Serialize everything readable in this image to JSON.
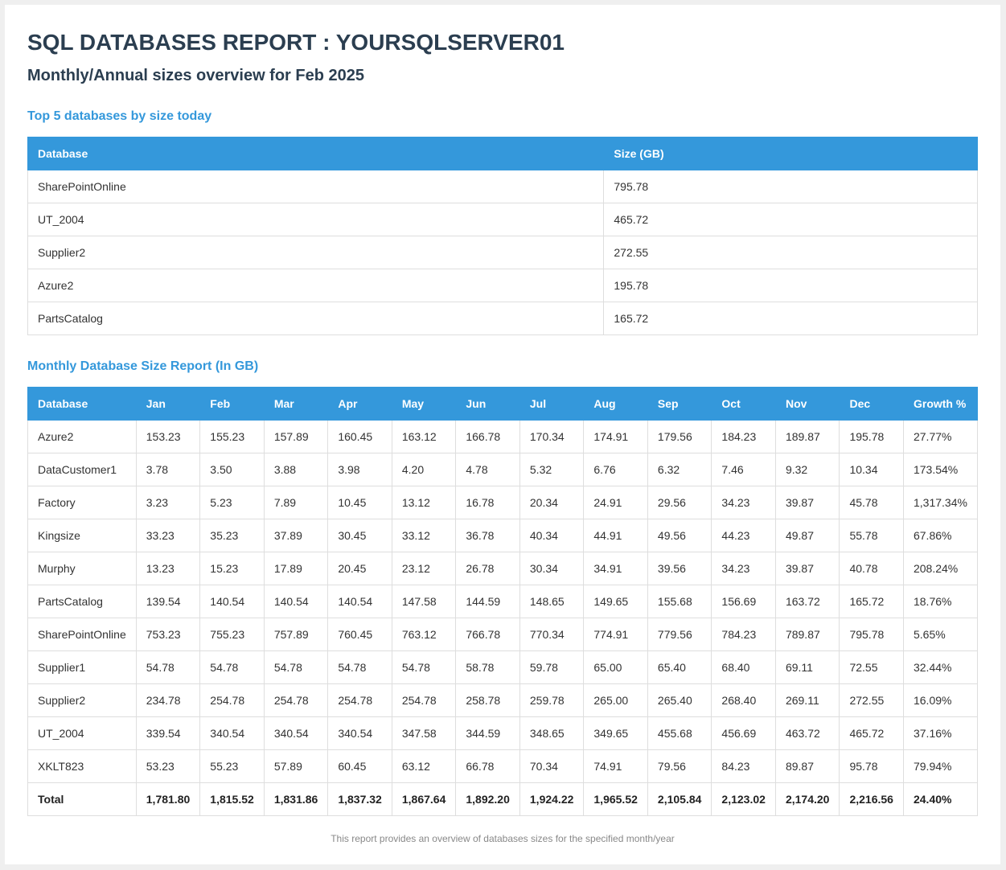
{
  "report": {
    "title": "SQL DATABASES REPORT : YOURSQLSERVER01",
    "subtitle": "Monthly/Annual sizes overview for Feb 2025",
    "footer": "This report provides an overview of databases sizes for the specified month/year"
  },
  "top5": {
    "title": "Top 5 databases by size today",
    "headers": [
      "Database",
      "Size (GB)"
    ],
    "rows": [
      [
        "SharePointOnline",
        "795.78"
      ],
      [
        "UT_2004",
        "465.72"
      ],
      [
        "Supplier2",
        "272.55"
      ],
      [
        "Azure2",
        "195.78"
      ],
      [
        "PartsCatalog",
        "165.72"
      ]
    ]
  },
  "monthly": {
    "title": "Monthly Database Size Report (In GB)",
    "headers": [
      "Database",
      "Jan",
      "Feb",
      "Mar",
      "Apr",
      "May",
      "Jun",
      "Jul",
      "Aug",
      "Sep",
      "Oct",
      "Nov",
      "Dec",
      "Growth %"
    ],
    "rows": [
      [
        "Azure2",
        "153.23",
        "155.23",
        "157.89",
        "160.45",
        "163.12",
        "166.78",
        "170.34",
        "174.91",
        "179.56",
        "184.23",
        "189.87",
        "195.78",
        "27.77%"
      ],
      [
        "DataCustomer1",
        "3.78",
        "3.50",
        "3.88",
        "3.98",
        "4.20",
        "4.78",
        "5.32",
        "6.76",
        "6.32",
        "7.46",
        "9.32",
        "10.34",
        "173.54%"
      ],
      [
        "Factory",
        "3.23",
        "5.23",
        "7.89",
        "10.45",
        "13.12",
        "16.78",
        "20.34",
        "24.91",
        "29.56",
        "34.23",
        "39.87",
        "45.78",
        "1,317.34%"
      ],
      [
        "Kingsize",
        "33.23",
        "35.23",
        "37.89",
        "30.45",
        "33.12",
        "36.78",
        "40.34",
        "44.91",
        "49.56",
        "44.23",
        "49.87",
        "55.78",
        "67.86%"
      ],
      [
        "Murphy",
        "13.23",
        "15.23",
        "17.89",
        "20.45",
        "23.12",
        "26.78",
        "30.34",
        "34.91",
        "39.56",
        "34.23",
        "39.87",
        "40.78",
        "208.24%"
      ],
      [
        "PartsCatalog",
        "139.54",
        "140.54",
        "140.54",
        "140.54",
        "147.58",
        "144.59",
        "148.65",
        "149.65",
        "155.68",
        "156.69",
        "163.72",
        "165.72",
        "18.76%"
      ],
      [
        "SharePointOnline",
        "753.23",
        "755.23",
        "757.89",
        "760.45",
        "763.12",
        "766.78",
        "770.34",
        "774.91",
        "779.56",
        "784.23",
        "789.87",
        "795.78",
        "5.65%"
      ],
      [
        "Supplier1",
        "54.78",
        "54.78",
        "54.78",
        "54.78",
        "54.78",
        "58.78",
        "59.78",
        "65.00",
        "65.40",
        "68.40",
        "69.11",
        "72.55",
        "32.44%"
      ],
      [
        "Supplier2",
        "234.78",
        "254.78",
        "254.78",
        "254.78",
        "254.78",
        "258.78",
        "259.78",
        "265.00",
        "265.40",
        "268.40",
        "269.11",
        "272.55",
        "16.09%"
      ],
      [
        "UT_2004",
        "339.54",
        "340.54",
        "340.54",
        "340.54",
        "347.58",
        "344.59",
        "348.65",
        "349.65",
        "455.68",
        "456.69",
        "463.72",
        "465.72",
        "37.16%"
      ],
      [
        "XKLT823",
        "53.23",
        "55.23",
        "57.89",
        "60.45",
        "63.12",
        "66.78",
        "70.34",
        "74.91",
        "79.56",
        "84.23",
        "89.87",
        "95.78",
        "79.94%"
      ]
    ],
    "total": [
      "Total",
      "1,781.80",
      "1,815.52",
      "1,831.86",
      "1,837.32",
      "1,867.64",
      "1,892.20",
      "1,924.22",
      "1,965.52",
      "2,105.84",
      "2,123.02",
      "2,174.20",
      "2,216.56",
      "24.40%"
    ]
  }
}
